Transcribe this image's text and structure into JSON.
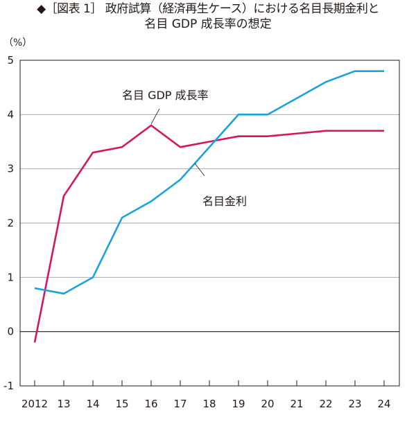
{
  "title": {
    "line1": "◆［図表 1］ 政府試算（経済再生ケース）における名目長期金利と",
    "line2": "名目 GDP 成長率の想定"
  },
  "chart_data": {
    "type": "line",
    "title": "◆［図表 1］ 政府試算（経済再生ケース）における名目長期金利と名目 GDP 成長率の想定",
    "ylabel": "（%）",
    "xlabel": "",
    "categories": [
      "2012",
      "13",
      "14",
      "15",
      "16",
      "17",
      "18",
      "19",
      "20",
      "21",
      "22",
      "23",
      "24"
    ],
    "ylim": [
      -1,
      5
    ],
    "yticks": [
      5,
      4,
      3,
      2,
      1,
      0,
      -1
    ],
    "grid": true,
    "series": [
      {
        "name": "名目 GDP 成長率",
        "color": "#d6155f",
        "values": [
          -0.2,
          2.5,
          3.3,
          3.4,
          3.8,
          3.4,
          3.5,
          3.6,
          3.6,
          3.65,
          3.7,
          3.7,
          3.7
        ]
      },
      {
        "name": "名目金利",
        "color": "#1ba1db",
        "values": [
          0.8,
          0.7,
          1.0,
          2.1,
          2.4,
          2.8,
          3.4,
          4.0,
          4.0,
          4.3,
          4.6,
          4.8,
          4.8
        ]
      }
    ]
  }
}
